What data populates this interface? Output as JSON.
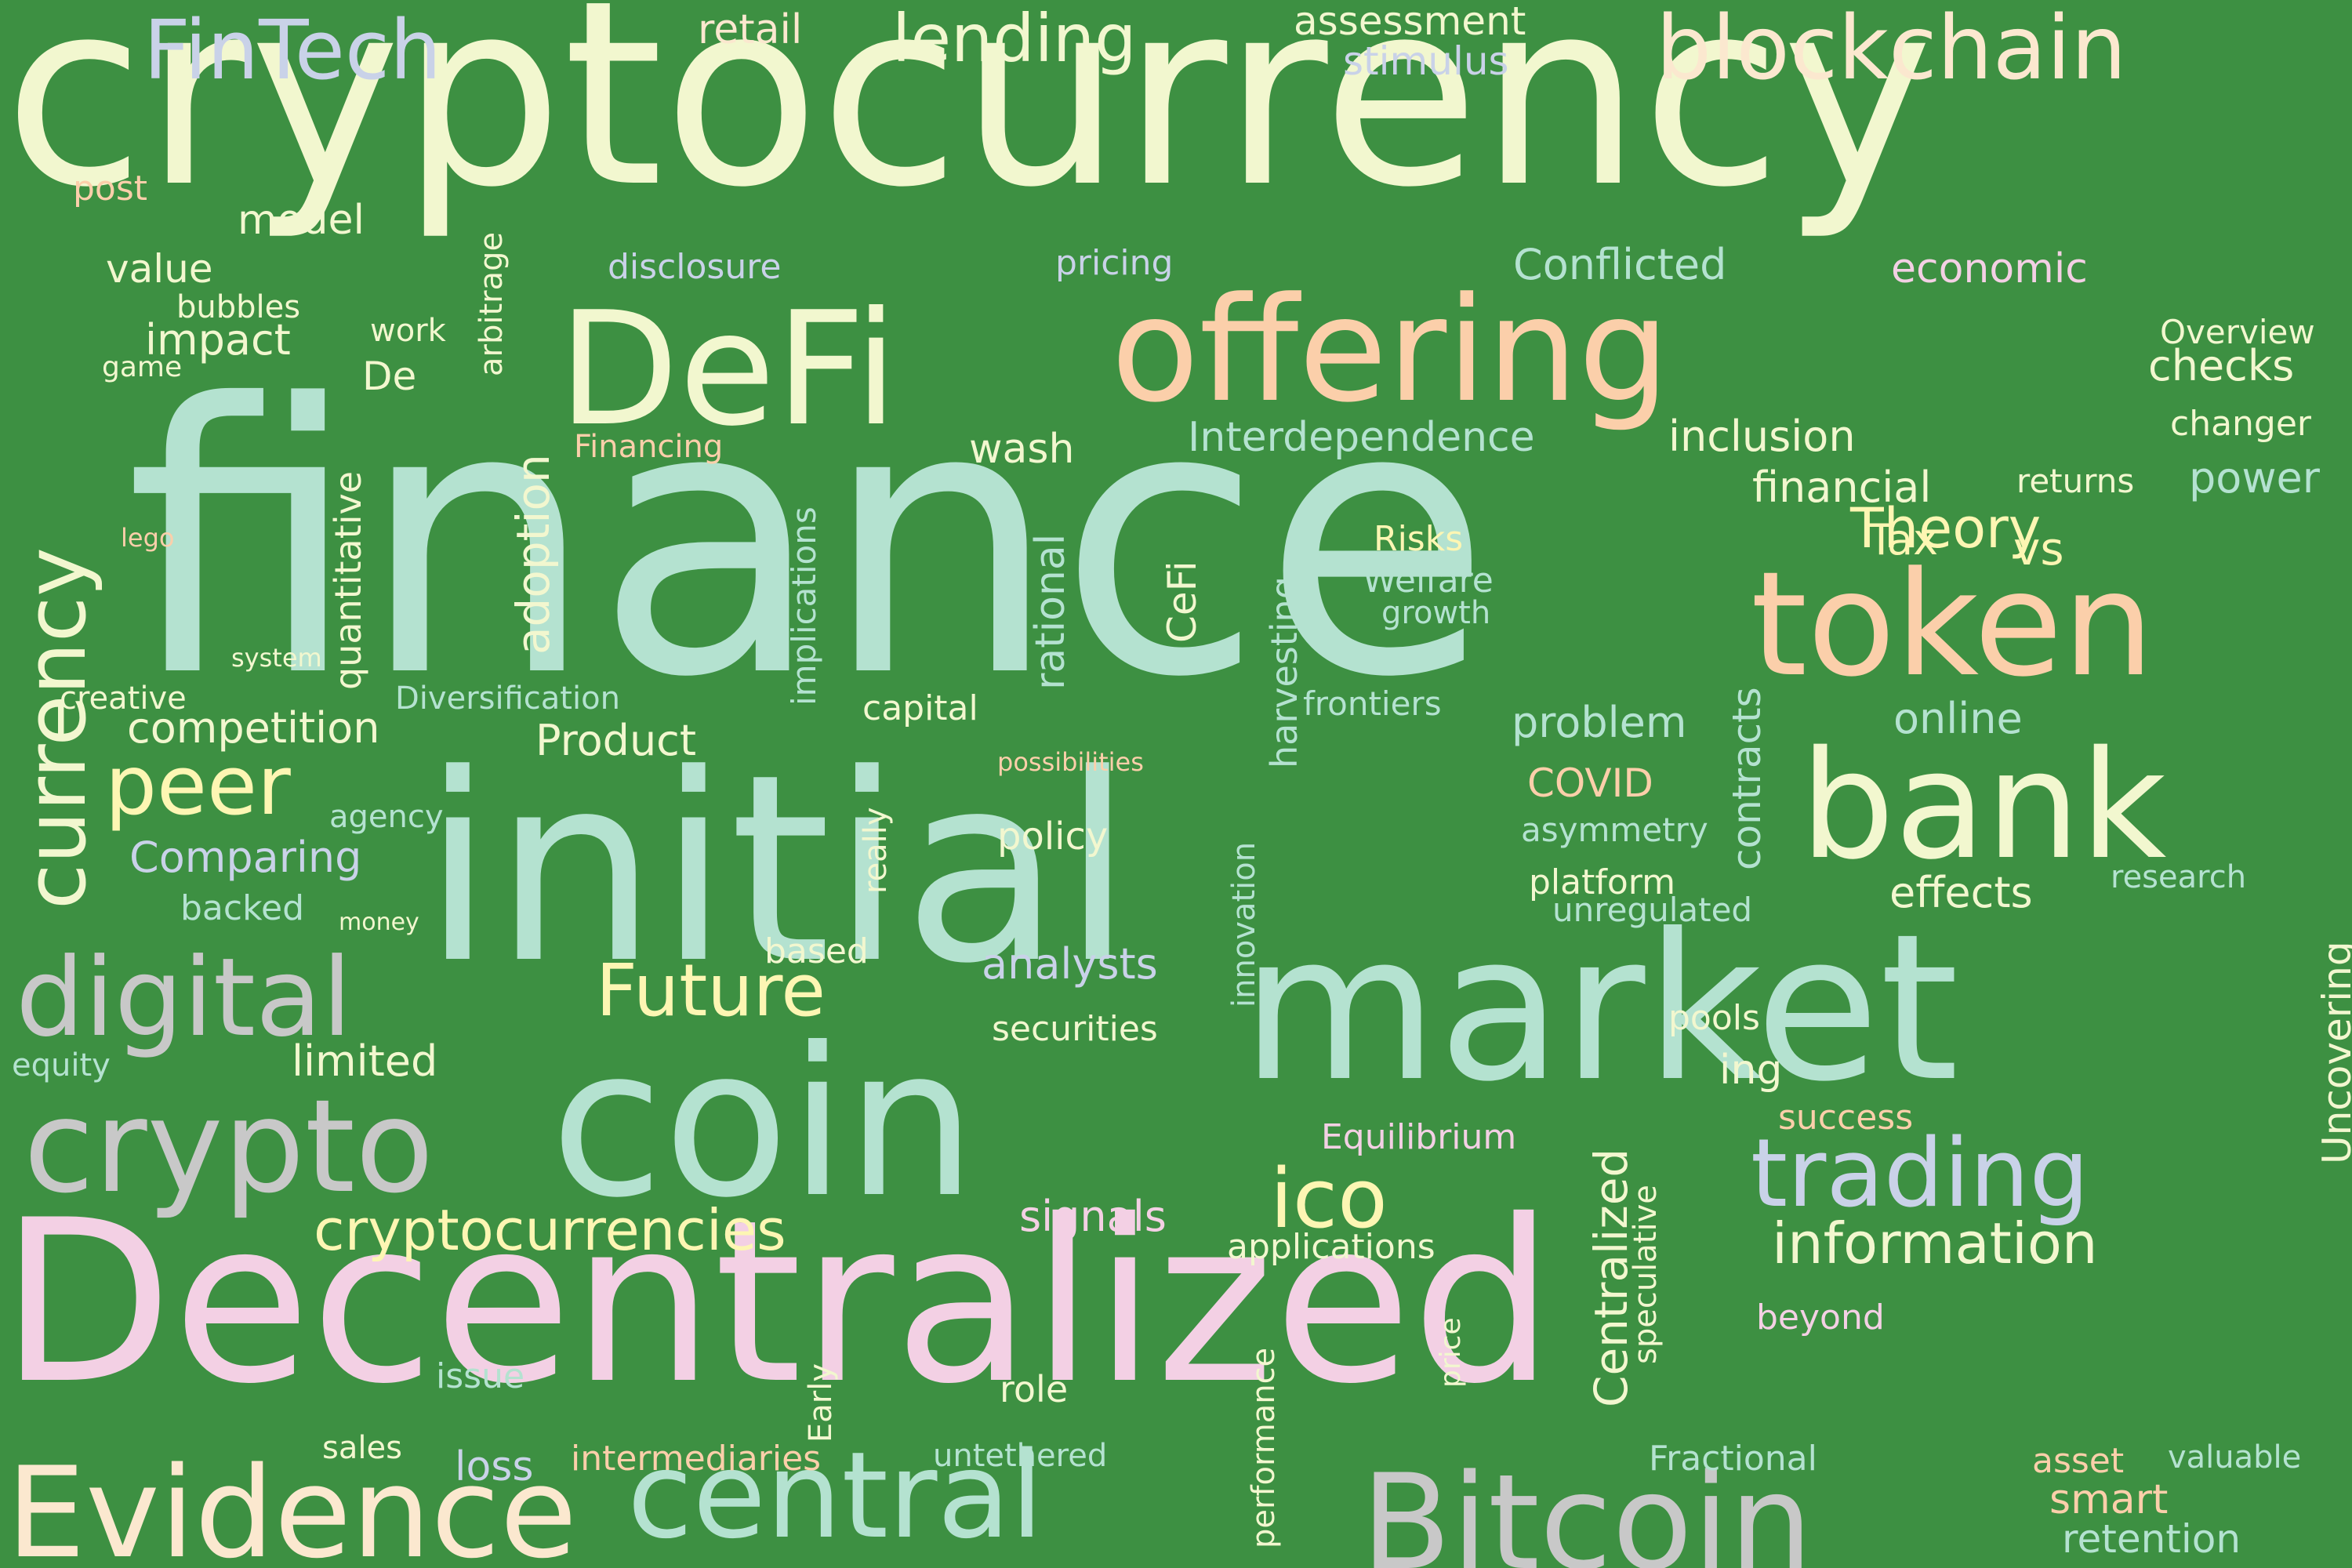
{
  "palette": {
    "background": "#3d9042",
    "cream": "#f2f7cf",
    "mint": "#b4e2d0",
    "peach": "#fbcfaa",
    "pink": "#f3d0e4",
    "lavender": "#c9d2e8",
    "gray": "#c8c8c8",
    "yellow": "#fdf6b3",
    "sand": "#fbe8cf",
    "lightgreen": "#e0f2c8"
  },
  "words": [
    {
      "text": "cryptocurrency",
      "color": "cream"
    },
    {
      "text": "finance",
      "color": "mint"
    },
    {
      "text": "Decentralized",
      "color": "pink"
    },
    {
      "text": "initial",
      "color": "mint"
    },
    {
      "text": "coin",
      "color": "mint"
    },
    {
      "text": "market",
      "color": "mint"
    },
    {
      "text": "offering",
      "color": "peach"
    },
    {
      "text": "token",
      "color": "peach"
    },
    {
      "text": "DeFi",
      "color": "cream"
    },
    {
      "text": "bank",
      "color": "cream"
    },
    {
      "text": "Bitcoin",
      "color": "gray"
    },
    {
      "text": "central",
      "color": "mint"
    },
    {
      "text": "Evidence",
      "color": "sand"
    },
    {
      "text": "crypto",
      "color": "gray"
    },
    {
      "text": "digital",
      "color": "gray"
    },
    {
      "text": "blockchain",
      "color": "sand"
    },
    {
      "text": "currency",
      "color": "cream"
    },
    {
      "text": "trading",
      "color": "lavender"
    },
    {
      "text": "FinTech",
      "color": "lavender"
    },
    {
      "text": "lending",
      "color": "cream"
    },
    {
      "text": "peer",
      "color": "yellow"
    },
    {
      "text": "Future",
      "color": "yellow"
    },
    {
      "text": "ico",
      "color": "yellow"
    },
    {
      "text": "cryptocurrencies",
      "color": "yellow"
    },
    {
      "text": "information",
      "color": "cream"
    },
    {
      "text": "adoption",
      "color": "cream"
    },
    {
      "text": "Theory",
      "color": "yellow"
    },
    {
      "text": "Centralized",
      "color": "cream"
    },
    {
      "text": "retail",
      "color": "sand"
    },
    {
      "text": "assessment",
      "color": "cream"
    },
    {
      "text": "stimulus",
      "color": "lavender"
    },
    {
      "text": "post",
      "color": "peach"
    },
    {
      "text": "model",
      "color": "cream"
    },
    {
      "text": "arbitrage",
      "color": "cream"
    },
    {
      "text": "value",
      "color": "cream"
    },
    {
      "text": "bubbles",
      "color": "cream"
    },
    {
      "text": "work",
      "color": "cream"
    },
    {
      "text": "impact",
      "color": "cream"
    },
    {
      "text": "game",
      "color": "cream"
    },
    {
      "text": "De",
      "color": "cream"
    },
    {
      "text": "disclosure",
      "color": "lavender"
    },
    {
      "text": "pricing",
      "color": "lavender"
    },
    {
      "text": "Conflicted",
      "color": "mint"
    },
    {
      "text": "economic",
      "color": "pink"
    },
    {
      "text": "Overview",
      "color": "cream"
    },
    {
      "text": "checks",
      "color": "cream"
    },
    {
      "text": "changer",
      "color": "cream"
    },
    {
      "text": "Financing",
      "color": "peach"
    },
    {
      "text": "wash",
      "color": "cream"
    },
    {
      "text": "Interdependence",
      "color": "mint"
    },
    {
      "text": "inclusion",
      "color": "cream"
    },
    {
      "text": "financial",
      "color": "cream"
    },
    {
      "text": "returns",
      "color": "cream"
    },
    {
      "text": "power",
      "color": "mint"
    },
    {
      "text": "lego",
      "color": "peach"
    },
    {
      "text": "quantitative",
      "color": "cream"
    },
    {
      "text": "implications",
      "color": "mint"
    },
    {
      "text": "rational",
      "color": "mint"
    },
    {
      "text": "harvesting",
      "color": "mint"
    },
    {
      "text": "Risks",
      "color": "yellow"
    },
    {
      "text": "Welfare",
      "color": "mint"
    },
    {
      "text": "growth",
      "color": "mint"
    },
    {
      "text": "Tax",
      "color": "yellow"
    },
    {
      "text": "vs",
      "color": "yellow"
    },
    {
      "text": "CeFi",
      "color": "cream"
    },
    {
      "text": "system",
      "color": "cream"
    },
    {
      "text": "creative",
      "color": "cream"
    },
    {
      "text": "Diversification",
      "color": "mint"
    },
    {
      "text": "capital",
      "color": "cream"
    },
    {
      "text": "frontiers",
      "color": "mint"
    },
    {
      "text": "contracts",
      "color": "mint"
    },
    {
      "text": "problem",
      "color": "mint"
    },
    {
      "text": "online",
      "color": "mint"
    },
    {
      "text": "competition",
      "color": "cream"
    },
    {
      "text": "Product",
      "color": "cream"
    },
    {
      "text": "possibilities",
      "color": "peach"
    },
    {
      "text": "COVID",
      "color": "peach"
    },
    {
      "text": "agency",
      "color": "mint"
    },
    {
      "text": "really",
      "color": "cream"
    },
    {
      "text": "policy",
      "color": "cream"
    },
    {
      "text": "asymmetry",
      "color": "mint"
    },
    {
      "text": "Comparing",
      "color": "lavender"
    },
    {
      "text": "innovation",
      "color": "mint"
    },
    {
      "text": "platform",
      "color": "cream"
    },
    {
      "text": "effects",
      "color": "cream"
    },
    {
      "text": "research",
      "color": "mint"
    },
    {
      "text": "backed",
      "color": "mint"
    },
    {
      "text": "money",
      "color": "cream"
    },
    {
      "text": "unregulated",
      "color": "mint"
    },
    {
      "text": "Uncovering",
      "color": "cream"
    },
    {
      "text": "based",
      "color": "cream"
    },
    {
      "text": "analysts",
      "color": "lavender"
    },
    {
      "text": "equity",
      "color": "mint"
    },
    {
      "text": "limited",
      "color": "cream"
    },
    {
      "text": "securities",
      "color": "cream"
    },
    {
      "text": "pools",
      "color": "cream"
    },
    {
      "text": "ing",
      "color": "cream"
    },
    {
      "text": "Equilibrium",
      "color": "pink"
    },
    {
      "text": "success",
      "color": "peach"
    },
    {
      "text": "signals",
      "color": "pink"
    },
    {
      "text": "applications",
      "color": "cream"
    },
    {
      "text": "speculative",
      "color": "cream"
    },
    {
      "text": "price",
      "color": "cream"
    },
    {
      "text": "performance",
      "color": "cream"
    },
    {
      "text": "beyond",
      "color": "pink"
    },
    {
      "text": "Early",
      "color": "cream"
    },
    {
      "text": "issue",
      "color": "mint"
    },
    {
      "text": "role",
      "color": "cream"
    },
    {
      "text": "sales",
      "color": "cream"
    },
    {
      "text": "loss",
      "color": "lavender"
    },
    {
      "text": "intermediaries",
      "color": "peach"
    },
    {
      "text": "untethered",
      "color": "mint"
    },
    {
      "text": "Fractional",
      "color": "mint"
    },
    {
      "text": "asset",
      "color": "peach"
    },
    {
      "text": "valuable",
      "color": "mint"
    },
    {
      "text": "smart",
      "color": "peach"
    },
    {
      "text": "retention",
      "color": "mint"
    }
  ]
}
